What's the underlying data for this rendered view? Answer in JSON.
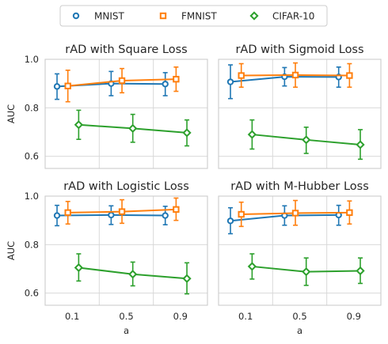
{
  "legend": {
    "items": [
      {
        "label": "MNIST",
        "color": "#1f77b4",
        "marker": "circle"
      },
      {
        "label": "FMNIST",
        "color": "#ff7f0e",
        "marker": "square"
      },
      {
        "label": "CIFAR-10",
        "color": "#2ca02c",
        "marker": "diamond"
      }
    ]
  },
  "chart_data": [
    {
      "type": "line",
      "title": "rAD with Square Loss",
      "xlabel": "",
      "ylabel": "AUC",
      "categories": [
        "0.1",
        "0.5",
        "0.9"
      ],
      "ylim": [
        0.55,
        1.0
      ],
      "yticks": [
        "0.6",
        "0.8",
        "1.0"
      ],
      "grid": true,
      "series": [
        {
          "name": "MNIST",
          "values": [
            0.888,
            0.9,
            0.898
          ],
          "err_low": [
            0.835,
            0.85,
            0.85
          ],
          "err_high": [
            0.94,
            0.95,
            0.945
          ]
        },
        {
          "name": "FMNIST",
          "values": [
            0.89,
            0.912,
            0.918
          ],
          "err_low": [
            0.825,
            0.862,
            0.868
          ],
          "err_high": [
            0.955,
            0.962,
            0.968
          ]
        },
        {
          "name": "CIFAR-10",
          "values": [
            0.73,
            0.715,
            0.697
          ],
          "err_low": [
            0.67,
            0.658,
            0.643
          ],
          "err_high": [
            0.79,
            0.773,
            0.75
          ]
        }
      ]
    },
    {
      "type": "line",
      "title": "rAD with Sigmoid Loss",
      "xlabel": "",
      "ylabel": "",
      "categories": [
        "0.1",
        "0.5",
        "0.9"
      ],
      "ylim": [
        0.55,
        1.0
      ],
      "yticks": [
        "0.6",
        "0.8",
        "1.0"
      ],
      "grid": true,
      "series": [
        {
          "name": "MNIST",
          "values": [
            0.907,
            0.928,
            0.927
          ],
          "err_low": [
            0.838,
            0.89,
            0.885
          ],
          "err_high": [
            0.977,
            0.966,
            0.968
          ]
        },
        {
          "name": "FMNIST",
          "values": [
            0.933,
            0.935,
            0.933
          ],
          "err_low": [
            0.885,
            0.885,
            0.885
          ],
          "err_high": [
            0.982,
            0.985,
            0.982
          ]
        },
        {
          "name": "CIFAR-10",
          "values": [
            0.69,
            0.668,
            0.648
          ],
          "err_low": [
            0.63,
            0.612,
            0.588
          ],
          "err_high": [
            0.75,
            0.72,
            0.71
          ]
        }
      ]
    },
    {
      "type": "line",
      "title": "rAD with Logistic Loss",
      "xlabel": "a",
      "ylabel": "AUC",
      "categories": [
        "0.1",
        "0.5",
        "0.9"
      ],
      "ylim": [
        0.55,
        1.0
      ],
      "yticks": [
        "0.6",
        "0.8",
        "1.0"
      ],
      "grid": true,
      "series": [
        {
          "name": "MNIST",
          "values": [
            0.92,
            0.922,
            0.92
          ],
          "err_low": [
            0.878,
            0.883,
            0.882
          ],
          "err_high": [
            0.962,
            0.96,
            0.958
          ]
        },
        {
          "name": "FMNIST",
          "values": [
            0.932,
            0.936,
            0.945
          ],
          "err_low": [
            0.885,
            0.888,
            0.9
          ],
          "err_high": [
            0.978,
            0.985,
            0.992
          ]
        },
        {
          "name": "CIFAR-10",
          "values": [
            0.705,
            0.678,
            0.66
          ],
          "err_low": [
            0.65,
            0.63,
            0.597
          ],
          "err_high": [
            0.762,
            0.728,
            0.725
          ]
        }
      ]
    },
    {
      "type": "line",
      "title": "rAD with M-Hubber Loss",
      "xlabel": "a",
      "ylabel": "",
      "categories": [
        "0.1",
        "0.5",
        "0.9"
      ],
      "ylim": [
        0.55,
        1.0
      ],
      "yticks": [
        "0.6",
        "0.8",
        "1.0"
      ],
      "grid": true,
      "series": [
        {
          "name": "MNIST",
          "values": [
            0.898,
            0.92,
            0.922
          ],
          "err_low": [
            0.845,
            0.88,
            0.88
          ],
          "err_high": [
            0.952,
            0.96,
            0.962
          ]
        },
        {
          "name": "FMNIST",
          "values": [
            0.925,
            0.93,
            0.932
          ],
          "err_low": [
            0.875,
            0.88,
            0.885
          ],
          "err_high": [
            0.975,
            0.982,
            0.98
          ]
        },
        {
          "name": "CIFAR-10",
          "values": [
            0.71,
            0.688,
            0.692
          ],
          "err_low": [
            0.658,
            0.632,
            0.64
          ],
          "err_high": [
            0.762,
            0.745,
            0.745
          ]
        }
      ]
    }
  ]
}
